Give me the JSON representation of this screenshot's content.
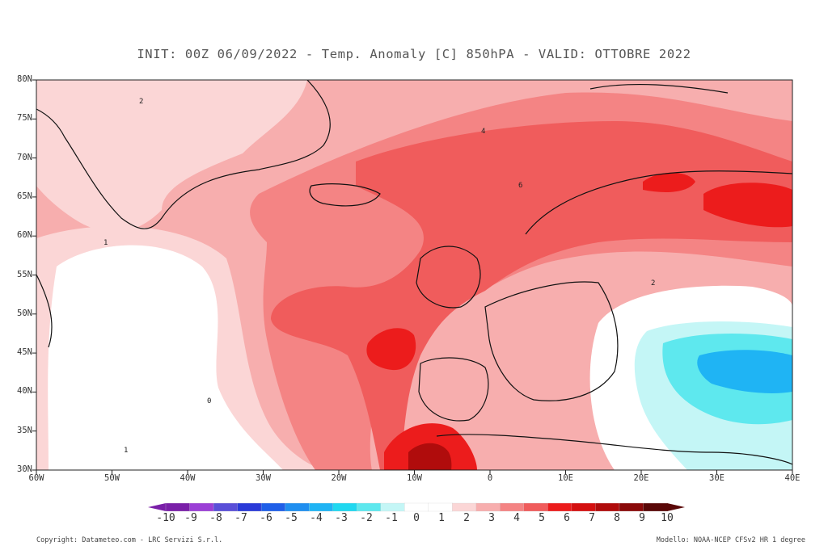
{
  "title": "INIT: 00Z 06/09/2022 - Temp. Anomaly [C] 850hPA - VALID: OTTOBRE 2022",
  "lat_labels": [
    "80N",
    "75N",
    "70N",
    "65N",
    "60N",
    "55N",
    "50N",
    "45N",
    "40N",
    "35N",
    "30N"
  ],
  "lon_labels": [
    "60W",
    "50W",
    "40W",
    "30W",
    "20W",
    "10W",
    "0",
    "10E",
    "20E",
    "30E",
    "40E"
  ],
  "contour_labels": [
    "2",
    "1",
    "0",
    "1",
    "4",
    "6",
    "2"
  ],
  "legend": {
    "labels": [
      "-10",
      "-9",
      "-8",
      "-7",
      "-6",
      "-5",
      "-4",
      "-3",
      "-2",
      "-1",
      "0",
      "1",
      "2",
      "3",
      "4",
      "5",
      "6",
      "7",
      "8",
      "9",
      "10"
    ],
    "colors": [
      "#7a1fa8",
      "#9b3fd6",
      "#5a4fd8",
      "#2a3ad8",
      "#1f5fe8",
      "#1f8ff0",
      "#1fb4f4",
      "#20d8f0",
      "#5ee8ee",
      "#c4f6f6",
      "#ffffff",
      "#ffffff",
      "#fbd6d6",
      "#f7aeae",
      "#f48484",
      "#f05c5c",
      "#ec1c1c",
      "#d41010",
      "#b00c0c",
      "#8a0a0a",
      "#5a0808"
    ]
  },
  "footer": {
    "copyright": "Copyright: Datameteo.com - LRC Servizi S.r.l.",
    "model": "Modello: NOAA-NCEP CFSv2 HR 1 degree"
  }
}
